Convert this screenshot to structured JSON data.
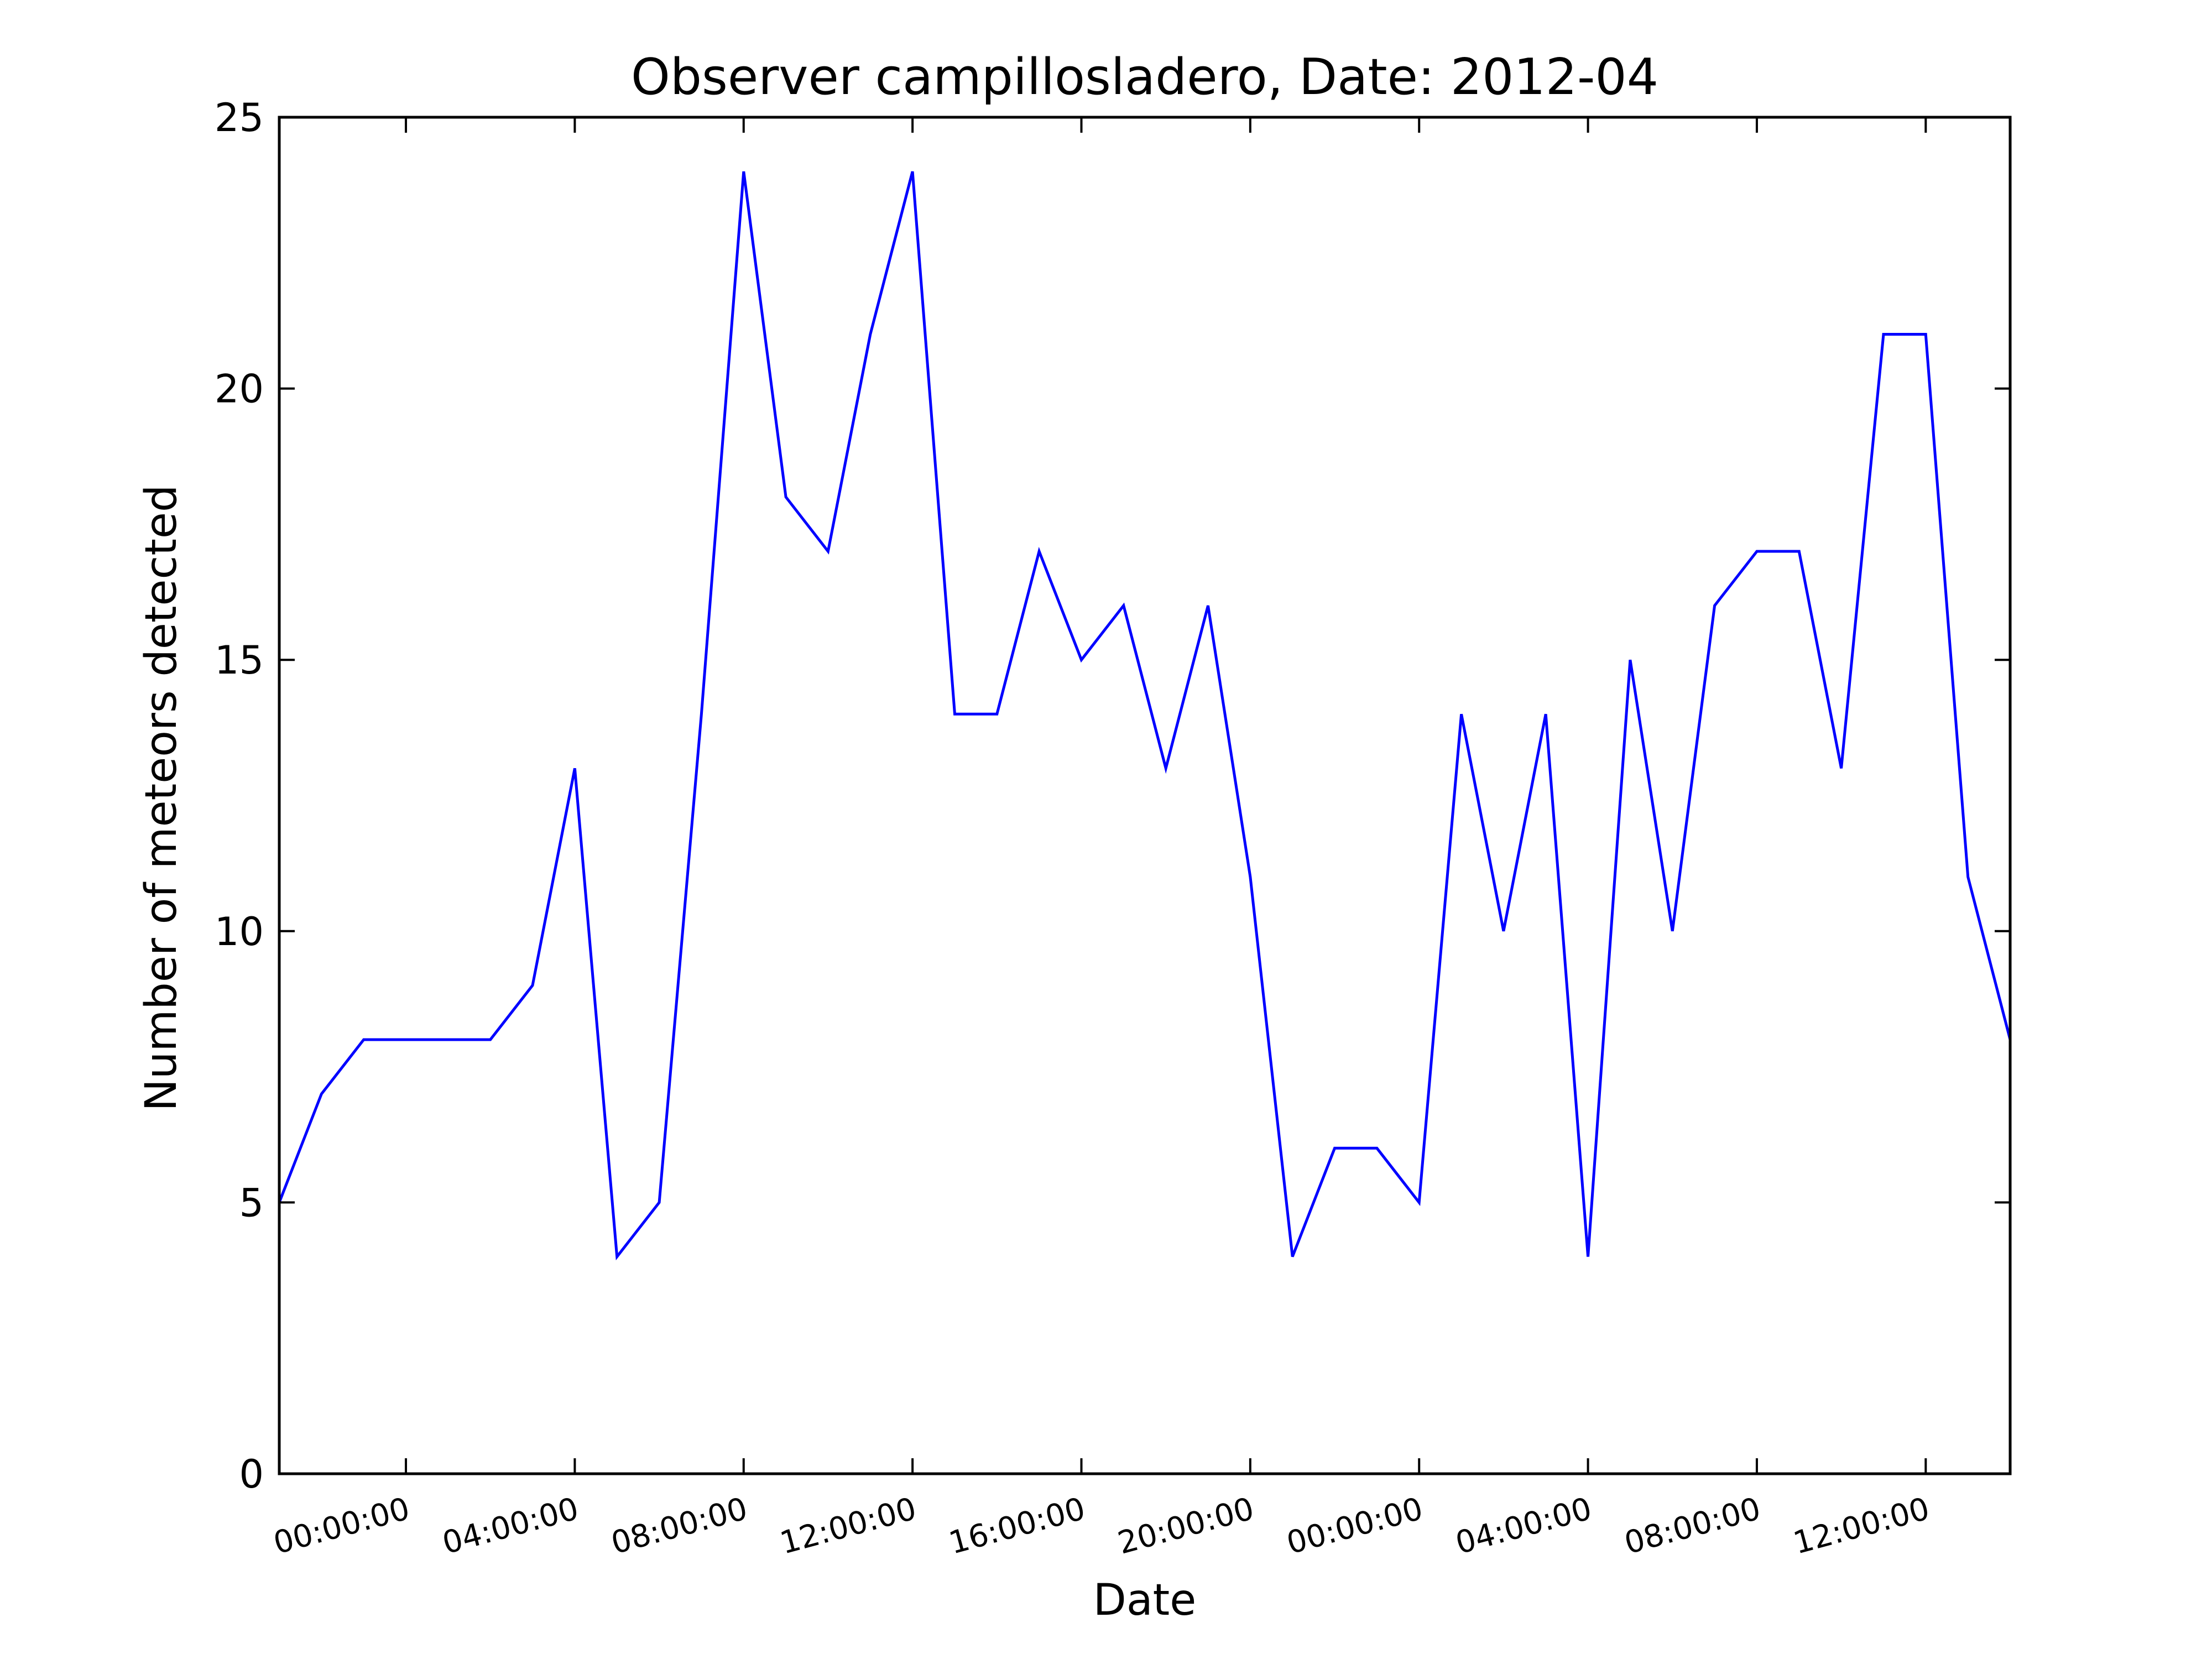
{
  "chart_data": {
    "type": "line",
    "title": "Observer campillosladero, Date: 2012-04",
    "xlabel": "Date",
    "ylabel": "Number of meteors detected",
    "x_tick_labels": [
      "00:00:00",
      "04:00:00",
      "08:00:00",
      "12:00:00",
      "16:00:00",
      "20:00:00",
      "00:00:00",
      "04:00:00",
      "08:00:00",
      "12:00:00"
    ],
    "x_tick_hours": [
      0,
      4,
      8,
      12,
      16,
      20,
      24,
      28,
      32,
      36
    ],
    "x_hours": [
      -3,
      -2,
      -1,
      0,
      1,
      2,
      3,
      4,
      5,
      6,
      7,
      8,
      9,
      10,
      11,
      12,
      13,
      14,
      15,
      16,
      17,
      18,
      19,
      20,
      21,
      22,
      23,
      24,
      25,
      26,
      27,
      28,
      29,
      30,
      31,
      32,
      33,
      34,
      35,
      36,
      37,
      38
    ],
    "values": [
      5,
      7,
      8,
      8,
      8,
      8,
      9,
      13,
      4,
      5,
      14,
      24,
      18,
      17,
      21,
      24,
      14,
      14,
      17,
      15,
      16,
      13,
      16,
      11,
      4,
      6,
      6,
      5,
      14,
      10,
      14,
      4,
      15,
      10,
      16,
      17,
      17,
      13,
      21,
      21,
      11,
      8
    ],
    "xlim_hours": [
      -3,
      38
    ],
    "ylim": [
      0,
      25
    ],
    "y_ticks": [
      0,
      5,
      10,
      15,
      20,
      25
    ],
    "y_tick_labels": [
      "0",
      "5",
      "10",
      "15",
      "20",
      "25"
    ],
    "line_color": "#0000ff",
    "grid": false,
    "legend": "none"
  }
}
